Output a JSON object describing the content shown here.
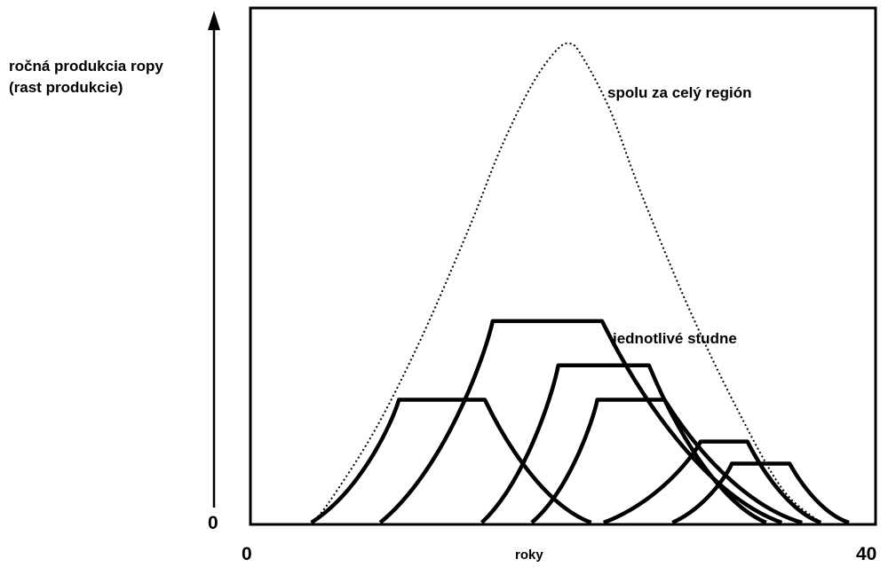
{
  "chart_data": {
    "type": "line",
    "title": "",
    "ylabel": [
      "ročná produkcia ropy",
      "(rast produkcie)"
    ],
    "xlabel": "roky",
    "xlim": [
      0,
      40
    ],
    "ylim": [
      0,
      1
    ],
    "x_tick_labels": [
      "0",
      "40"
    ],
    "y_tick_labels": [
      "0"
    ],
    "grid": false,
    "annotations": {
      "total": "spolu za celý región",
      "wells": "jednotlivé studne"
    },
    "total_curve": {
      "style": "dotted",
      "points": [
        [
          3.9,
          0
        ],
        [
          5,
          0.04
        ],
        [
          8,
          0.19
        ],
        [
          11,
          0.38
        ],
        [
          14,
          0.6
        ],
        [
          16,
          0.76
        ],
        [
          18,
          0.89
        ],
        [
          19.5,
          0.958
        ],
        [
          20.4,
          0.975
        ],
        [
          21.2,
          0.95
        ],
        [
          23,
          0.84
        ],
        [
          25,
          0.67
        ],
        [
          28,
          0.44
        ],
        [
          31,
          0.24
        ],
        [
          34,
          0.07
        ],
        [
          36.5,
          0
        ]
      ]
    },
    "wells": [
      {
        "rise_start": 3.9,
        "plateau_start": 9.5,
        "plateau_end": 15,
        "end": 21.8,
        "level": 0.25
      },
      {
        "rise_start": 8.3,
        "plateau_start": 15.5,
        "plateau_end": 22.5,
        "end": 34,
        "level": 0.41
      },
      {
        "rise_start": 14.8,
        "plateau_start": 19.7,
        "plateau_end": 25.5,
        "end": 33,
        "level": 0.32
      },
      {
        "rise_start": 18,
        "plateau_start": 22.2,
        "plateau_end": 26.5,
        "end": 35.3,
        "level": 0.25
      },
      {
        "rise_start": 22.6,
        "plateau_start": 28.8,
        "plateau_end": 31.8,
        "end": 36.5,
        "level": 0.165
      },
      {
        "rise_start": 27,
        "plateau_start": 30.8,
        "plateau_end": 34.5,
        "end": 38.3,
        "level": 0.12
      }
    ]
  }
}
